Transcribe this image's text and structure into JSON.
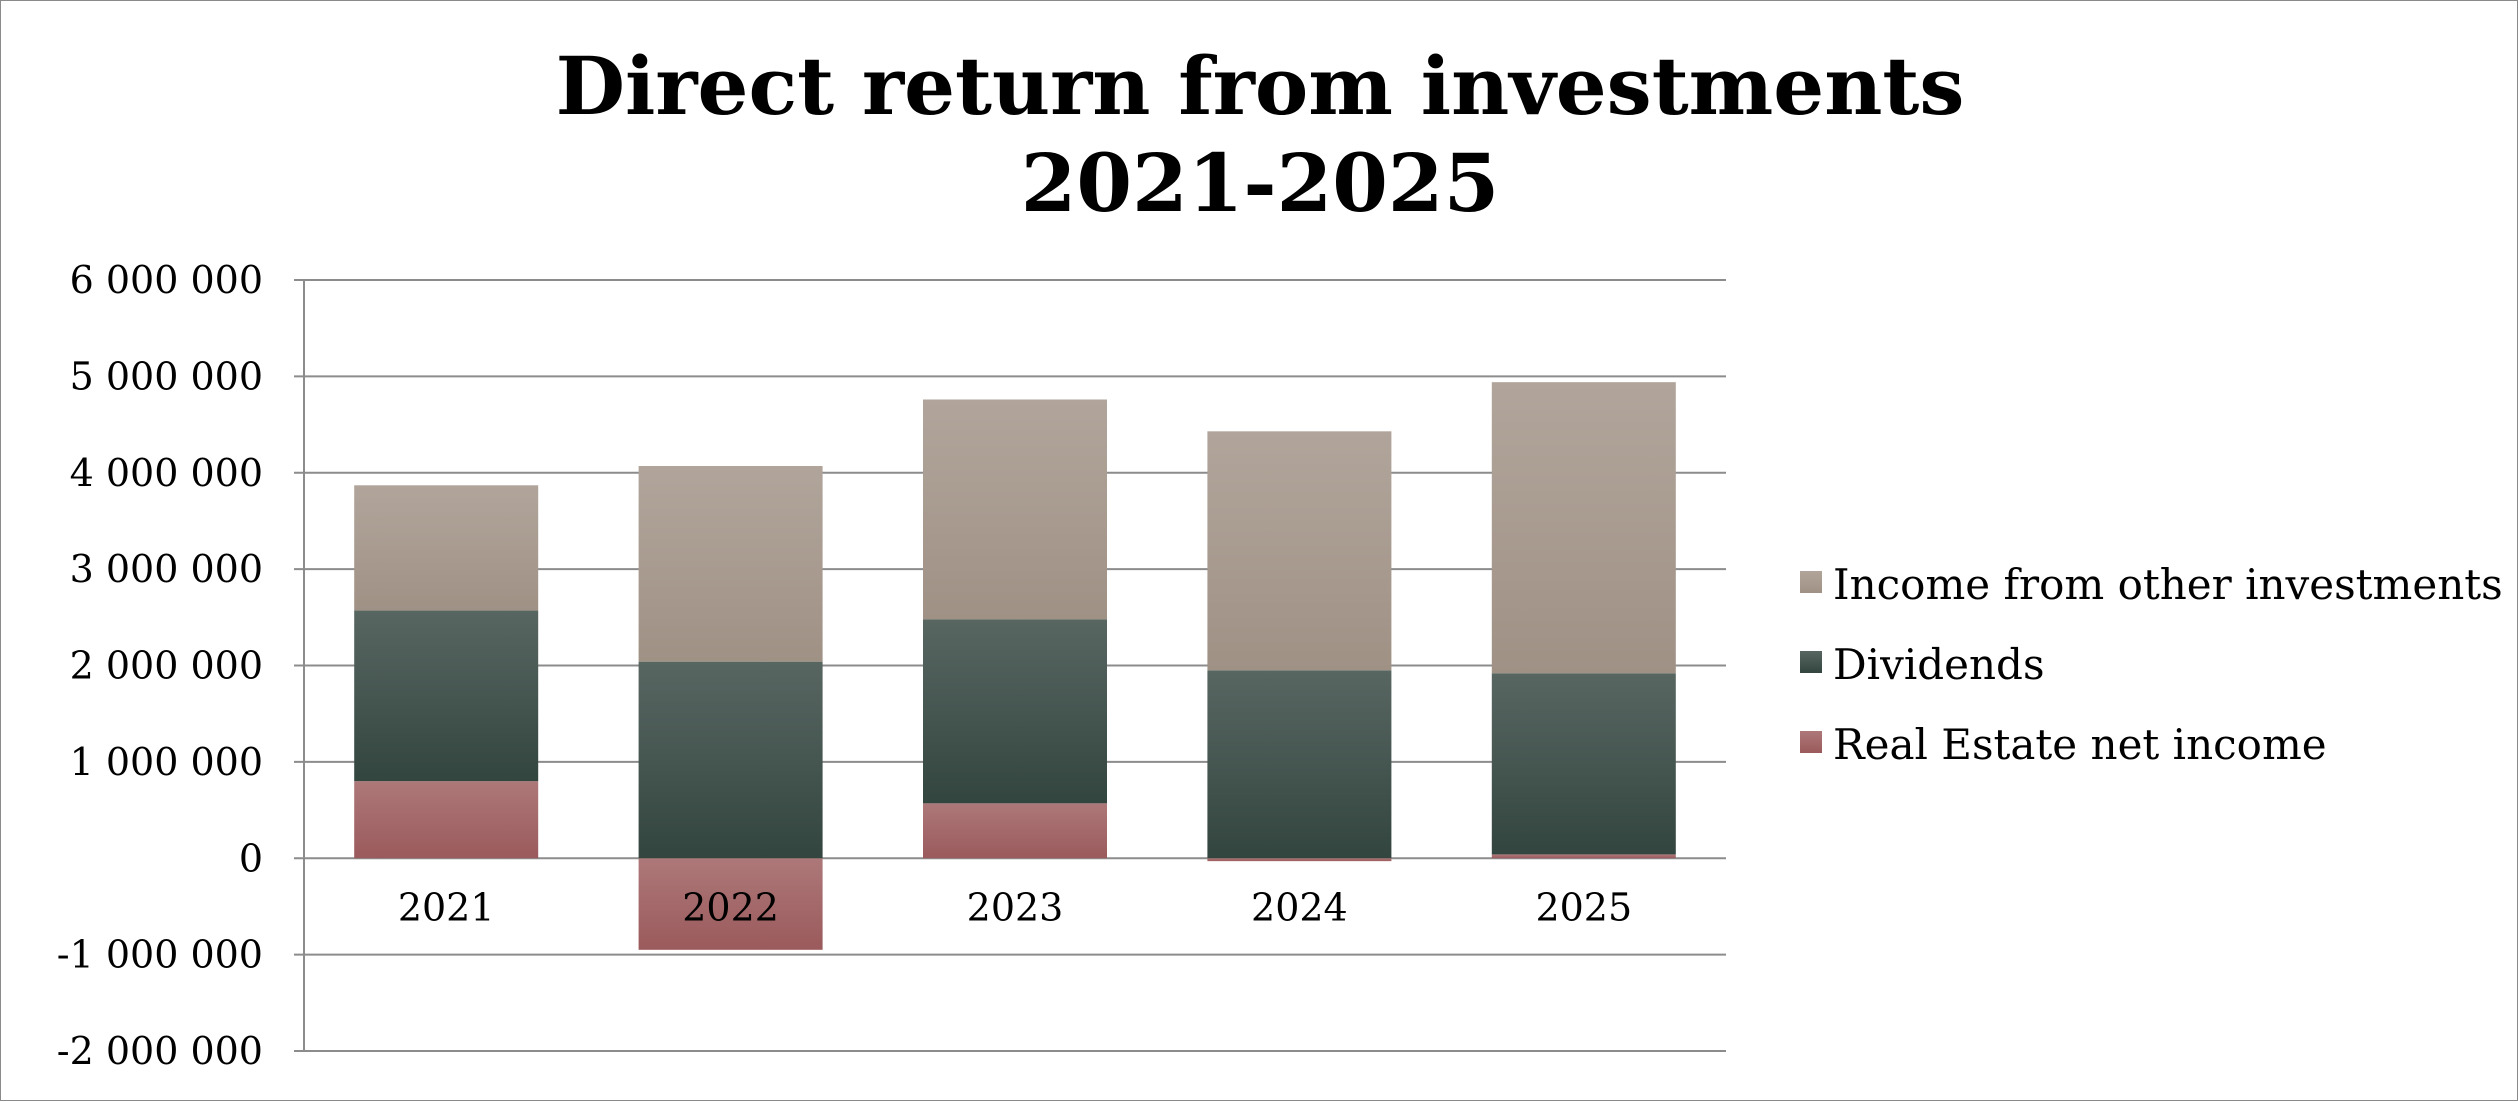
{
  "chart_data": {
    "type": "bar",
    "stacked": true,
    "title": "Direct return from investments",
    "subtitle": "2021-2025",
    "categories": [
      "2021",
      "2022",
      "2023",
      "2024",
      "2025"
    ],
    "series": [
      {
        "name": "Real Estate net income",
        "color": "#9b5a5c",
        "values": [
          800000,
          -950000,
          570000,
          -30000,
          40000
        ]
      },
      {
        "name": "Dividends",
        "color": "#33453f",
        "values": [
          1770000,
          2040000,
          1910000,
          1950000,
          1880000
        ]
      },
      {
        "name": "Income from other investments",
        "color": "#a09185",
        "values": [
          1300000,
          2030000,
          2280000,
          2480000,
          3020000
        ]
      }
    ],
    "ylim": [
      -2000000,
      6000000
    ],
    "yticks": [
      6000000,
      5000000,
      4000000,
      3000000,
      2000000,
      1000000,
      0,
      -1000000,
      -2000000
    ],
    "ytick_labels": [
      "6 000 000",
      "5 000 000",
      "4 000 000",
      "3 000 000",
      "2 000 000",
      "1 000 000",
      "0",
      "-1 000 000",
      "-2 000 000"
    ],
    "grid": true,
    "legend_position": "right",
    "legend_order": [
      "Income from other investments",
      "Dividends",
      "Real Estate net income"
    ]
  }
}
